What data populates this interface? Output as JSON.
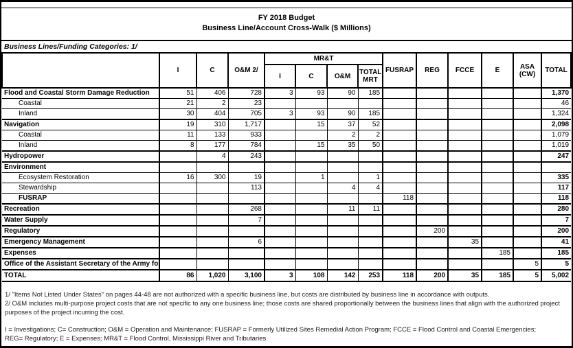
{
  "title": {
    "line1": "FY 2018 Budget",
    "line2": "Business Line/Account Cross-Walk ($ Millions)"
  },
  "subheader": "Business Lines/Funding Categories:  1/",
  "table": {
    "columns": {
      "label": "",
      "i": "I",
      "c": "C",
      "om": "O&M  2/",
      "mrt_group": "MR&T",
      "mrt_i": "I",
      "mrt_c": "C",
      "mrt_om": "O&M",
      "mrt_total": "TOTAL MRT",
      "fusrap": "FUSRAP",
      "reg": "REG",
      "fcce": "FCCE",
      "e": "E",
      "asa": "ASA (CW)",
      "total": "TOTAL"
    },
    "rows": [
      {
        "label": "Flood and Coastal Storm Damage Reduction",
        "indent": false,
        "bold_label": true,
        "bold_total": true,
        "thick_top": true,
        "values": {
          "i": "51",
          "c": "406",
          "om": "728",
          "mrt_i": "3",
          "mrt_c": "93",
          "mrt_om": "90",
          "mrt_total": "185",
          "total": "1,370"
        }
      },
      {
        "label": "Coastal",
        "indent": true,
        "bold_label": false,
        "bold_total": false,
        "thick_top": false,
        "values": {
          "i": "21",
          "c": "2",
          "om": "23",
          "total": "46"
        }
      },
      {
        "label": "Inland",
        "indent": true,
        "bold_label": false,
        "bold_total": false,
        "thick_top": false,
        "values": {
          "i": "30",
          "c": "404",
          "om": "705",
          "mrt_i": "3",
          "mrt_c": "93",
          "mrt_om": "90",
          "mrt_total": "185",
          "total": "1,324"
        }
      },
      {
        "label": "Navigation",
        "indent": false,
        "bold_label": true,
        "bold_total": true,
        "thick_top": true,
        "values": {
          "i": "19",
          "c": "310",
          "om": "1,717",
          "mrt_c": "15",
          "mrt_om": "37",
          "mrt_total": "52",
          "total": "2,098"
        }
      },
      {
        "label": "Coastal",
        "indent": true,
        "bold_label": false,
        "bold_total": false,
        "thick_top": false,
        "values": {
          "i": "11",
          "c": "133",
          "om": "933",
          "mrt_om": "2",
          "mrt_total": "2",
          "total": "1,079"
        }
      },
      {
        "label": "Inland",
        "indent": true,
        "bold_label": false,
        "bold_total": false,
        "thick_top": false,
        "values": {
          "i": "8",
          "c": "177",
          "om": "784",
          "mrt_c": "15",
          "mrt_om": "35",
          "mrt_total": "50",
          "total": "1,019"
        }
      },
      {
        "label": "Hydropower",
        "indent": false,
        "bold_label": true,
        "bold_total": true,
        "thick_top": true,
        "values": {
          "c": "4",
          "om": "243",
          "total": "247"
        }
      },
      {
        "label": "Environment",
        "indent": false,
        "bold_label": true,
        "bold_total": false,
        "thick_top": true,
        "values": {}
      },
      {
        "label": "Ecosystem Restoration",
        "indent": true,
        "bold_label": false,
        "bold_total": true,
        "thick_top": false,
        "values": {
          "i": "16",
          "c": "300",
          "om": "19",
          "mrt_c": "1",
          "mrt_total": "1",
          "total": "335"
        }
      },
      {
        "label": "Stewardship",
        "indent": true,
        "bold_label": false,
        "bold_total": true,
        "thick_top": false,
        "values": {
          "om": "113",
          "mrt_om": "4",
          "mrt_total": "4",
          "total": "117"
        }
      },
      {
        "label": "FUSRAP",
        "indent": true,
        "bold_label": true,
        "bold_total": true,
        "thick_top": false,
        "values": {
          "fusrap": "118",
          "total": "118"
        }
      },
      {
        "label": "Recreation",
        "indent": false,
        "bold_label": true,
        "bold_total": true,
        "thick_top": true,
        "values": {
          "om": "268",
          "mrt_om": "11",
          "mrt_total": "11",
          "total": "280"
        }
      },
      {
        "label": "Water Supply",
        "indent": false,
        "bold_label": true,
        "bold_total": true,
        "thick_top": true,
        "values": {
          "om": "7",
          "total": "7"
        }
      },
      {
        "label": "Regulatory",
        "indent": false,
        "bold_label": true,
        "bold_total": true,
        "thick_top": true,
        "values": {
          "reg": "200",
          "total": "200"
        }
      },
      {
        "label": "Emergency Management",
        "indent": false,
        "bold_label": true,
        "bold_total": true,
        "thick_top": true,
        "values": {
          "om": "6",
          "fcce": "35",
          "total": "41"
        }
      },
      {
        "label": "Expenses",
        "indent": false,
        "bold_label": true,
        "bold_total": true,
        "thick_top": true,
        "values": {
          "e": "185",
          "total": "185"
        }
      },
      {
        "label": "Office of the Assistant Secretary of the Army for Civil Works",
        "indent": false,
        "bold_label": true,
        "bold_total": true,
        "thick_top": true,
        "values": {
          "asa": "5",
          "total": "5"
        }
      },
      {
        "label": "TOTAL",
        "indent": false,
        "bold_label": true,
        "bold_total": true,
        "thick_top": true,
        "bold_all": true,
        "values": {
          "i": "86",
          "c": "1,020",
          "om": "3,100",
          "mrt_i": "3",
          "mrt_c": "108",
          "mrt_om": "142",
          "mrt_total": "253",
          "fusrap": "118",
          "reg": "200",
          "fcce": "35",
          "e": "185",
          "asa": "5",
          "total": "5,002"
        }
      }
    ]
  },
  "footnotes": {
    "fn1": "1/  \"Items Not Listed Under States\" on pages 44-48 are not authorized with a specific business line, but costs are distributed by business line in accordance with outputs.",
    "fn2": "2/ O&M includes multi-purpose project costs that are not specific to any one business line; those costs are shared proportionally between the business lines that align with the authorized project purposes of the project incurring the cost.",
    "abbrev1": "I = Investigations; C= Construction; O&M = Operation and Maintenance; FUSRAP = Formerly Utilized Sites Remedial Action Program; FCCE = Flood Control and Coastal Emergencies;",
    "abbrev2": "REG= Regulatory; E = Expenses; MR&T = Flood Control, Mississippi River and Tributaries"
  }
}
